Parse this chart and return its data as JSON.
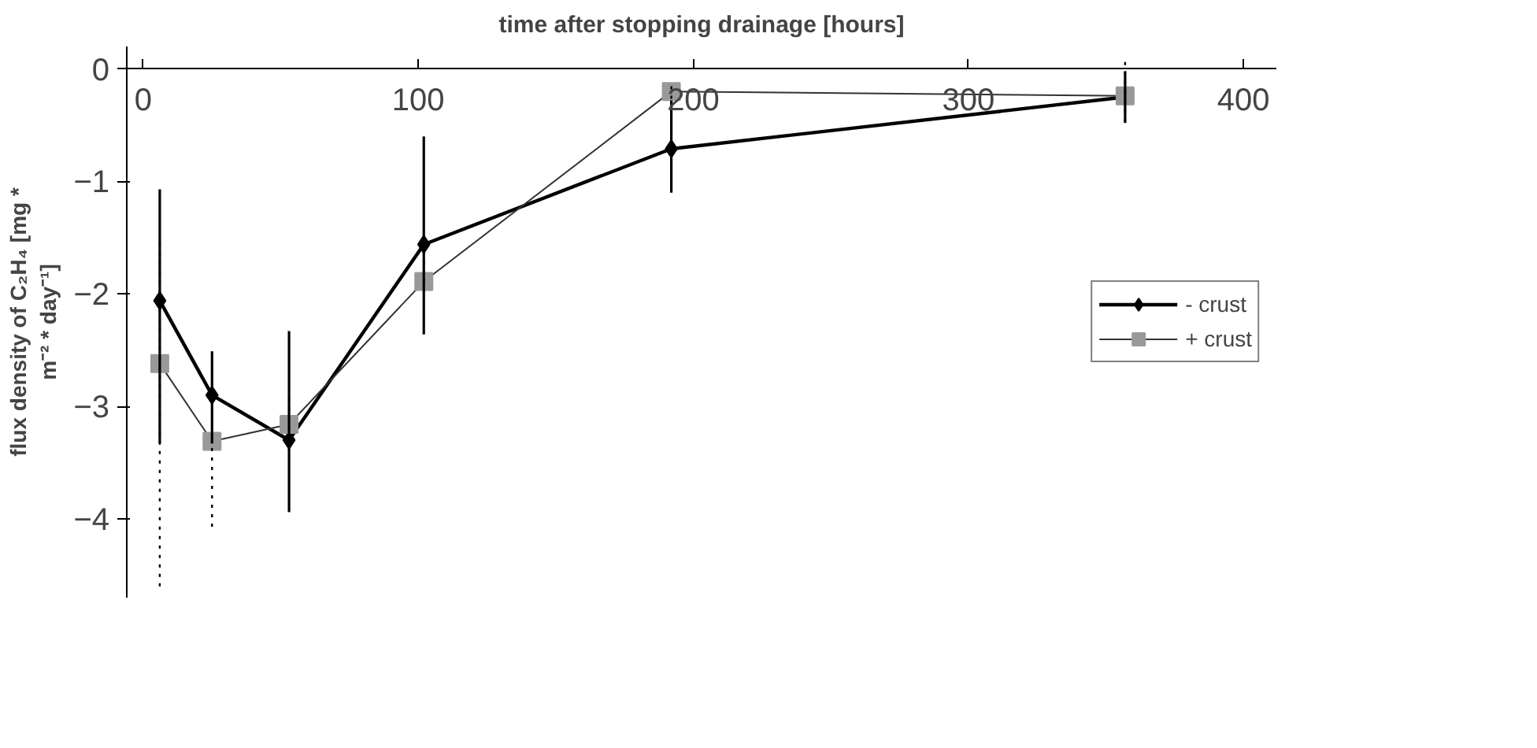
{
  "chart_data": {
    "type": "line",
    "title": "time after stopping drainage [hours]",
    "ylabel": "flux density of C₂H₄ [mg * m⁻² * day⁻¹]",
    "x": [
      6,
      25,
      53,
      102,
      192,
      357
    ],
    "series": [
      {
        "name": "- crust",
        "color": "#000000",
        "marker": "diamond",
        "values": [
          -2.06,
          -2.9,
          -3.3,
          -1.56,
          -0.71,
          -0.25
        ],
        "errors": [
          [
            -3.33,
            -1.07
          ],
          [
            -3.33,
            -2.51
          ],
          [
            -3.94,
            -2.33
          ],
          [
            -2.36,
            -0.6
          ],
          [
            -1.1,
            -0.28
          ],
          [
            -0.48,
            -0.02
          ]
        ]
      },
      {
        "name": "+ crust",
        "color": "#999999",
        "marker": "square",
        "values": [
          -2.62,
          -3.31,
          -3.16,
          -1.89,
          -0.2,
          -0.24
        ],
        "errors": [
          [
            -4.6,
            -1.55
          ],
          [
            -4.07,
            -2.68
          ],
          [
            -3.29,
            -2.93
          ],
          [
            -1.98,
            -1.6
          ],
          [
            -0.35,
            -0.1
          ],
          [
            -0.47,
            0.1
          ]
        ]
      }
    ],
    "xlim": [
      -6,
      412
    ],
    "xticks": [
      0,
      100,
      200,
      300,
      400
    ],
    "ylim": [
      -4.7,
      0.2
    ],
    "yticks": [
      0,
      -1,
      -2,
      -3,
      -4
    ],
    "grid": false,
    "legend": "right"
  }
}
